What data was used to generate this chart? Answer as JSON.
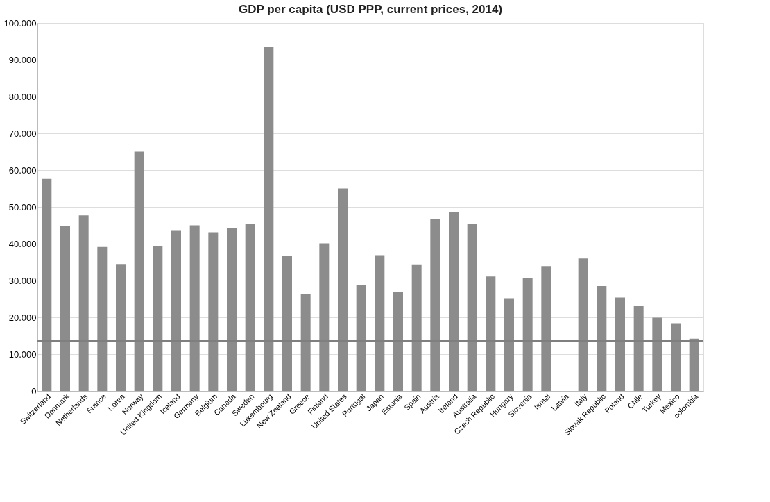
{
  "chart_data": {
    "type": "bar",
    "title": "GDP per capita (USD PPP, current prices, 2014)",
    "categories": [
      "Switzerland",
      "Denmark",
      "Netherlands",
      "France",
      "Korea",
      "Norway",
      "United Kingdom",
      "Iceland",
      "Germany",
      "Belgium",
      "Canada",
      "Sweden",
      "Luxembourg",
      "New Zealand",
      "Greece",
      "Finland",
      "United States",
      "Portugal",
      "Japan",
      "Estonia",
      "Spain",
      "Austria",
      "Ireland",
      "Australia",
      "Czech Republic",
      "Hungary",
      "Slovenia",
      "Israel",
      "Latvia",
      "Italy",
      "Slovak Republic",
      "Poland",
      "Chile",
      "Turkey",
      "Mexico",
      "colombia"
    ],
    "values": [
      57600,
      44800,
      47700,
      39100,
      34500,
      65000,
      39400,
      43700,
      45000,
      43100,
      44300,
      45400,
      93600,
      36800,
      26300,
      40100,
      55000,
      28700,
      36900,
      26800,
      34400,
      46800,
      48500,
      45400,
      31100,
      25200,
      30700,
      33900,
      null,
      36000,
      28500,
      25400,
      23000,
      19900,
      18400,
      14200
    ],
    "color": "#8c8c8c",
    "ylim": [
      0,
      100000
    ],
    "yticks": [
      0,
      {
        "value": 10000,
        "label": "10.000"
      },
      {
        "value": 20000,
        "label": "20.000"
      },
      {
        "value": 30000,
        "label": "30.000"
      },
      {
        "value": 40000,
        "label": "40.000"
      },
      {
        "value": 50000,
        "label": "50.000"
      },
      {
        "value": 60000,
        "label": "60.000"
      },
      {
        "value": 70000,
        "label": "70.000"
      },
      {
        "value": 80000,
        "label": "80.000"
      },
      {
        "value": 90000,
        "label": "90.000"
      },
      {
        "value": 100000,
        "label": "100.000"
      }
    ],
    "grid": "y",
    "ref_lines": [
      {
        "axis": "y",
        "value": 13500,
        "color": "#7f7f7f"
      }
    ]
  }
}
